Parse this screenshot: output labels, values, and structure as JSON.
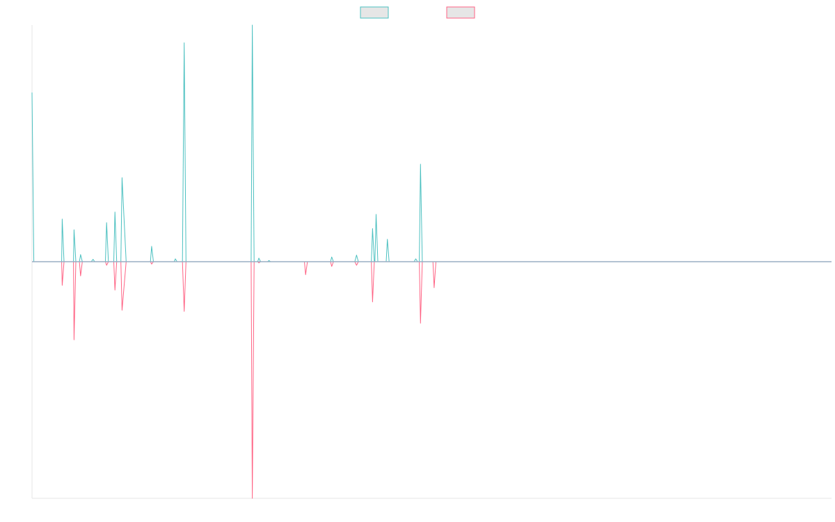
{
  "chart_data": {
    "type": "line",
    "title": "",
    "xlabel": "",
    "ylabel": "",
    "legend": {
      "placement": "top-center",
      "entries": [
        {
          "label": "",
          "border_color": "#4bc0c0",
          "fill_color": "#e6e6e6"
        },
        {
          "label": "",
          "border_color": "#ff6384",
          "fill_color": "#e6e6e6"
        }
      ]
    },
    "grid": false,
    "xlim": [
      0,
      135
    ],
    "ylim": [
      -1,
      1
    ],
    "series": [
      {
        "color": "#4bc0c0",
        "points": [
          [
            0,
            0.715
          ],
          [
            0.3,
            0
          ],
          [
            5,
            0
          ],
          [
            5.1,
            0.18
          ],
          [
            5.4,
            0
          ],
          [
            7,
            0
          ],
          [
            7.1,
            0.135
          ],
          [
            7.4,
            0
          ],
          [
            8,
            0
          ],
          [
            8.2,
            0.03
          ],
          [
            8.5,
            0
          ],
          [
            10,
            0
          ],
          [
            10.3,
            0.01
          ],
          [
            10.6,
            0
          ],
          [
            12.4,
            0
          ],
          [
            12.6,
            0.165
          ],
          [
            12.9,
            0
          ],
          [
            13.8,
            0
          ],
          [
            14,
            0.21
          ],
          [
            14.3,
            0
          ],
          [
            15,
            0
          ],
          [
            15.2,
            0.355
          ],
          [
            15.9,
            0
          ],
          [
            20,
            0
          ],
          [
            20.2,
            0.065
          ],
          [
            20.5,
            0
          ],
          [
            24,
            0
          ],
          [
            24.2,
            0.012
          ],
          [
            24.5,
            0
          ],
          [
            25.4,
            0
          ],
          [
            25.7,
            0.925
          ],
          [
            26,
            0
          ],
          [
            37,
            0
          ],
          [
            37.2,
            1
          ],
          [
            37.5,
            0
          ],
          [
            38.1,
            0
          ],
          [
            38.3,
            0.015
          ],
          [
            38.6,
            0
          ],
          [
            39.8,
            0
          ],
          [
            40,
            0.005
          ],
          [
            40.3,
            0
          ],
          [
            50.4,
            0
          ],
          [
            50.6,
            0.02
          ],
          [
            50.9,
            0
          ],
          [
            54.5,
            0
          ],
          [
            54.8,
            0.028
          ],
          [
            55.1,
            0
          ],
          [
            57.3,
            0
          ],
          [
            57.5,
            0.14
          ],
          [
            57.8,
            0
          ],
          [
            57.9,
            0
          ],
          [
            58.1,
            0.2
          ],
          [
            58.4,
            0
          ],
          [
            59.8,
            0
          ],
          [
            60,
            0.095
          ],
          [
            60.3,
            0
          ],
          [
            64.5,
            0
          ],
          [
            64.8,
            0.012
          ],
          [
            65.1,
            0
          ],
          [
            65.4,
            0
          ],
          [
            65.6,
            0.412
          ],
          [
            65.9,
            0
          ],
          [
            135,
            0
          ]
        ]
      },
      {
        "color": "#ff6384",
        "points": [
          [
            0,
            0
          ],
          [
            5,
            0
          ],
          [
            5.1,
            -0.1
          ],
          [
            5.4,
            0
          ],
          [
            7,
            0
          ],
          [
            7.1,
            -0.33
          ],
          [
            7.4,
            0
          ],
          [
            8,
            0
          ],
          [
            8.2,
            -0.06
          ],
          [
            8.5,
            0
          ],
          [
            12.4,
            0
          ],
          [
            12.6,
            -0.015
          ],
          [
            12.9,
            0
          ],
          [
            13.8,
            0
          ],
          [
            14,
            -0.12
          ],
          [
            14.3,
            0
          ],
          [
            15,
            0
          ],
          [
            15.2,
            -0.205
          ],
          [
            15.9,
            0
          ],
          [
            20,
            0
          ],
          [
            20.2,
            -0.01
          ],
          [
            20.5,
            0
          ],
          [
            25.4,
            0
          ],
          [
            25.7,
            -0.21
          ],
          [
            26,
            0
          ],
          [
            37,
            0
          ],
          [
            37.2,
            -1
          ],
          [
            37.5,
            0
          ],
          [
            38.1,
            0
          ],
          [
            38.3,
            -0.005
          ],
          [
            38.6,
            0
          ],
          [
            46,
            0
          ],
          [
            46.2,
            -0.055
          ],
          [
            46.5,
            0
          ],
          [
            50.4,
            0
          ],
          [
            50.6,
            -0.02
          ],
          [
            50.9,
            0
          ],
          [
            54.5,
            0
          ],
          [
            54.8,
            -0.015
          ],
          [
            55.1,
            0
          ],
          [
            57.3,
            0
          ],
          [
            57.5,
            -0.17
          ],
          [
            57.8,
            0
          ],
          [
            65.4,
            0
          ],
          [
            65.6,
            -0.26
          ],
          [
            65.9,
            0
          ],
          [
            67.7,
            0
          ],
          [
            67.9,
            -0.11
          ],
          [
            68.2,
            0
          ],
          [
            135,
            0
          ]
        ]
      },
      {
        "color": "#9aaec4",
        "points": [
          [
            0,
            0
          ],
          [
            135,
            0
          ]
        ]
      }
    ]
  }
}
